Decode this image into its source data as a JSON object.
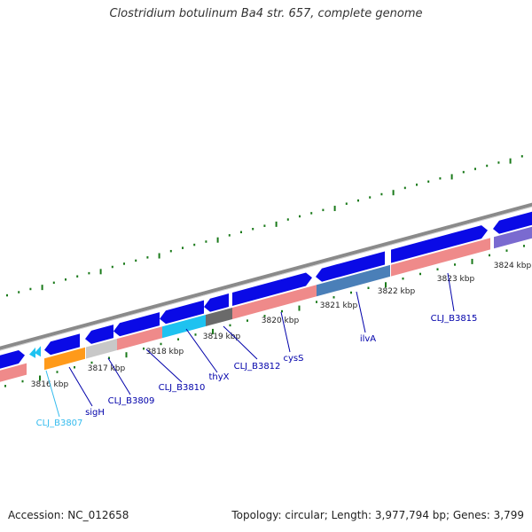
{
  "title": "Clostridium botulinum Ba4 str. 657, complete genome",
  "footer": {
    "accession": "Accession: NC_012658",
    "summary": "Topology: circular; Length: 3,977,794 bp; Genes: 3,799"
  },
  "colors": {
    "backbone": "#8a8a8a",
    "forward_cds": "#0a0ae6",
    "reverse_cds": "#0a0ae6",
    "gene_pink": "#ef8a8a",
    "gene_orange": "#ff9a1a",
    "gene_gray": "#c8c8c8",
    "gene_cyan": "#1ec2f0",
    "gene_dark": "#6a6a6a",
    "gene_steel": "#4a7fb8",
    "gene_purple": "#7a6ad0",
    "ticks": "#1a7a1a",
    "label": "#0000aa",
    "label_light": "#33bbee"
  },
  "scale_labels": [
    "3816 kbp",
    "3817 kbp",
    "3818 kbp",
    "3819 kbp",
    "3820 kbp",
    "3821 kbp",
    "3822 kbp",
    "3823 kbp",
    "3824 kbp"
  ],
  "gene_labels": [
    {
      "text": "CLJ_B3807",
      "color": "label_light"
    },
    {
      "text": "sigH",
      "color": "label"
    },
    {
      "text": "CLJ_B3809",
      "color": "label"
    },
    {
      "text": "CLJ_B3810",
      "color": "label"
    },
    {
      "text": "thyX",
      "color": "label"
    },
    {
      "text": "CLJ_B3812",
      "color": "label"
    },
    {
      "text": "cysS",
      "color": "label"
    },
    {
      "text": "ilvA",
      "color": "label"
    },
    {
      "text": "CLJ_B3815",
      "color": "label"
    }
  ]
}
